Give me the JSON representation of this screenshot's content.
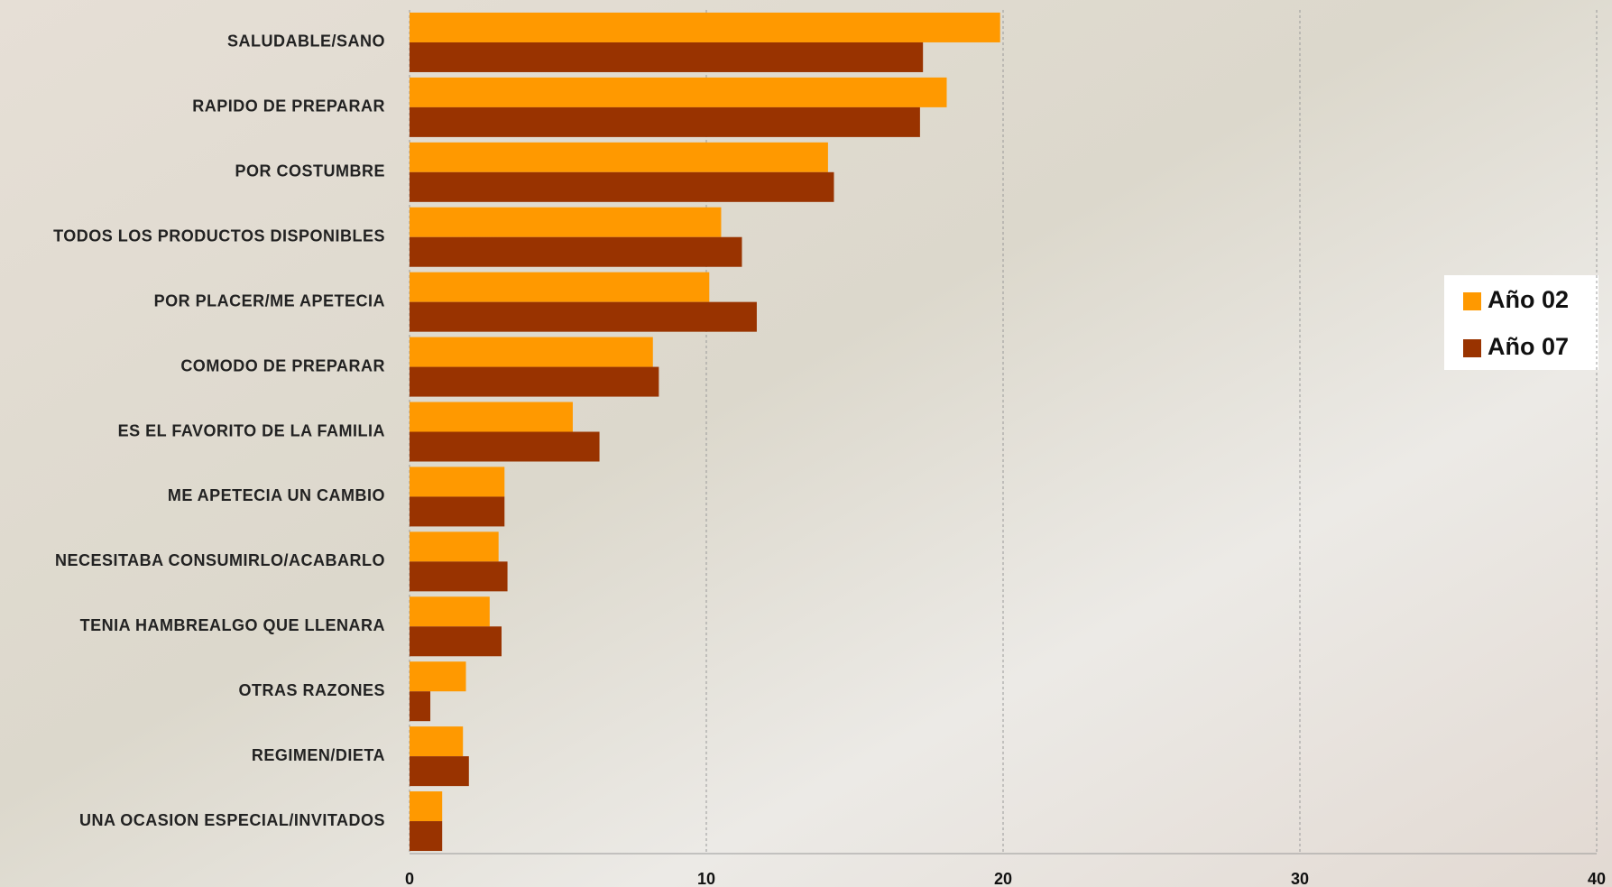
{
  "chart_data": {
    "type": "hbar",
    "categories": [
      "SALUDABLE/SANO",
      "RAPIDO DE PREPARAR",
      "POR COSTUMBRE",
      "TODOS LOS PRODUCTOS DISPONIBLES",
      "POR PLACER/ME APETECIA",
      "COMODO DE PREPARAR",
      "ES EL FAVORITO DE LA FAMILIA",
      "ME APETECIA UN CAMBIO",
      "NECESITABA CONSUMIRLO/ACABARLO",
      "TENIA HAMBREALGO QUE LLENARA",
      "OTRAS RAZONES",
      "REGIMEN/DIETA",
      "UNA OCASION ESPECIAL/INVITADOS"
    ],
    "series": [
      {
        "name": "Año 02",
        "color": "#ff9900",
        "values": [
          19.9,
          18.1,
          14.1,
          10.5,
          10.1,
          8.2,
          5.5,
          3.2,
          3.0,
          2.7,
          1.9,
          1.8,
          1.1
        ]
      },
      {
        "name": "Año 07",
        "color": "#993300",
        "values": [
          17.3,
          17.2,
          14.3,
          11.2,
          11.7,
          8.4,
          6.4,
          3.2,
          3.3,
          3.1,
          0.7,
          2.0,
          1.1
        ]
      }
    ],
    "xlim": [
      0,
      40
    ],
    "xticks": [
      0,
      10,
      20,
      30,
      40
    ],
    "grid": true,
    "legend": "right"
  }
}
